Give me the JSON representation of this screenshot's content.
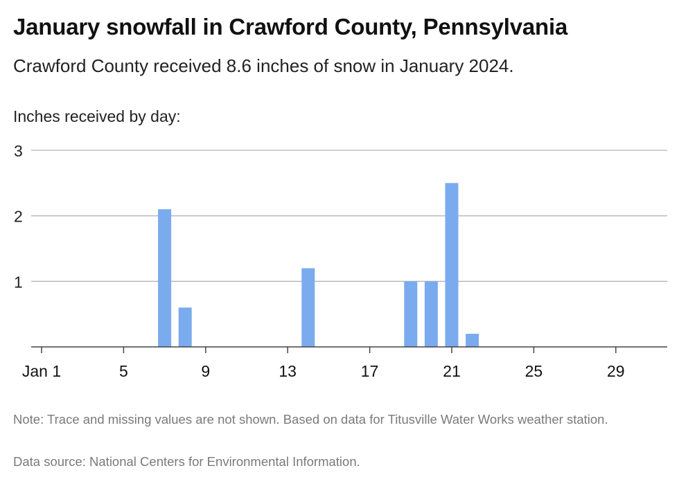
{
  "header": {
    "title": "January snowfall in Crawford County, Pennsylvania",
    "subtitle": "Crawford County received 8.6 inches of snow in January 2024."
  },
  "footer": {
    "note": "Note: Trace and missing values are not shown. Based on data for Titusville Water Works weather station.",
    "source": "Data source: National Centers for Environmental Information."
  },
  "chart_data": {
    "type": "bar",
    "title": "January snowfall in Crawford County, Pennsylvania",
    "subtitle": "Crawford County received 8.6 inches of snow in January 2024.",
    "ylabel": "Inches received by day:",
    "xlabel": "",
    "xlim": [
      0.5,
      31.5
    ],
    "ylim": [
      0,
      3
    ],
    "yticks": [
      1,
      2,
      3
    ],
    "xticks": [
      1,
      5,
      9,
      13,
      17,
      21,
      25,
      29
    ],
    "xtick_labels": [
      "Jan 1",
      "5",
      "9",
      "13",
      "17",
      "21",
      "25",
      "29"
    ],
    "grid": true,
    "bar_color": "#7aabee",
    "x": [
      7,
      8,
      14,
      19,
      20,
      21,
      22
    ],
    "values": [
      2.1,
      0.6,
      1.2,
      1.0,
      1.0,
      2.5,
      0.2
    ]
  }
}
